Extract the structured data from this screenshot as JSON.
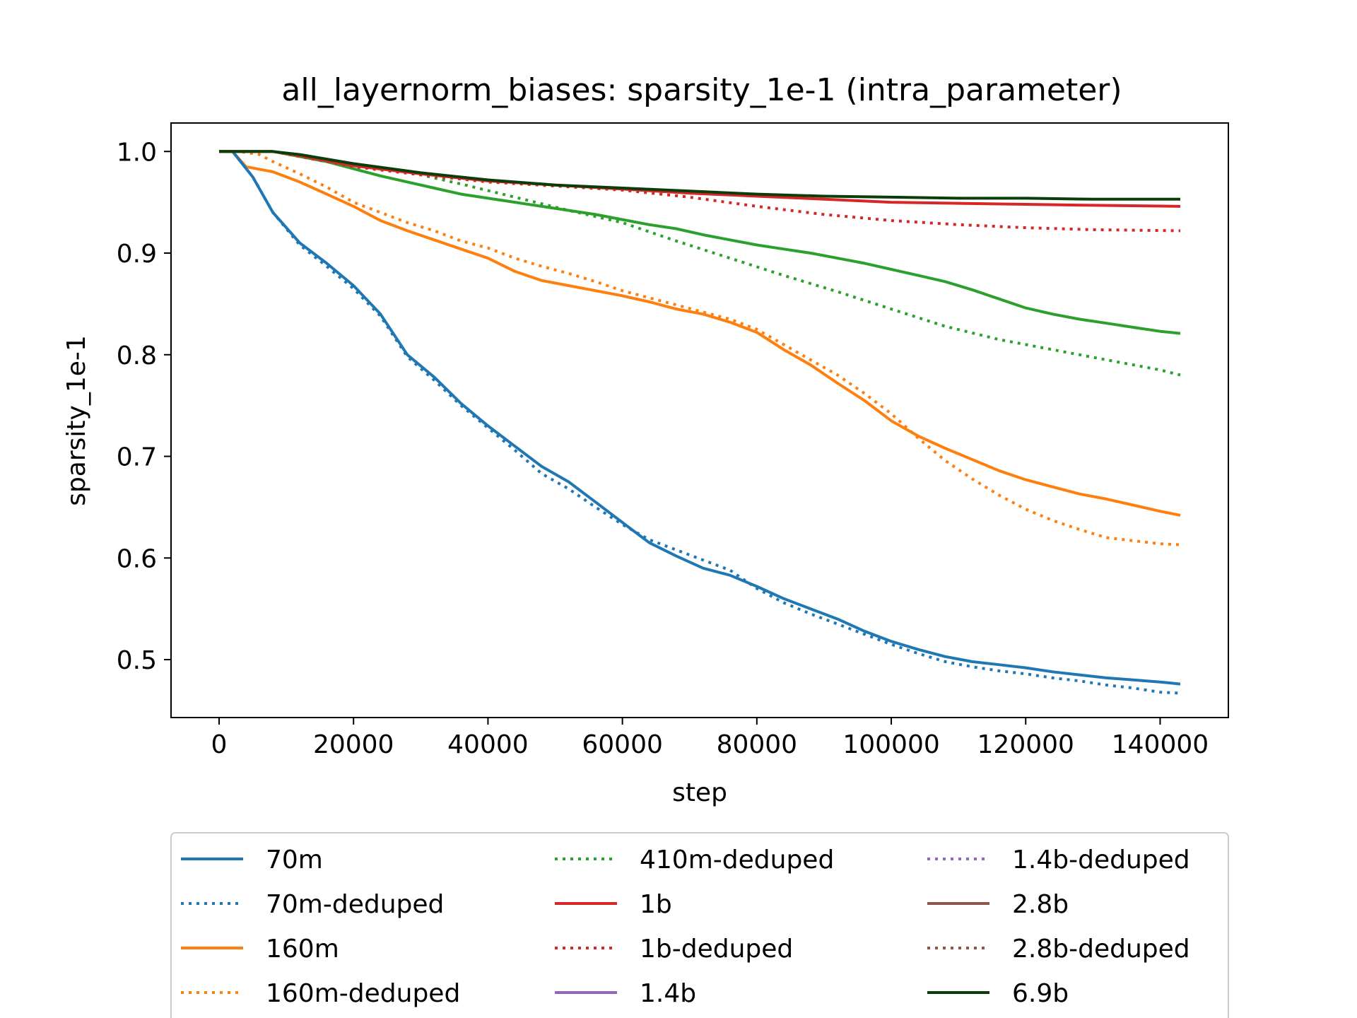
{
  "chart_data": {
    "type": "line",
    "title": "all_layernorm_biases: sparsity_1e-1 (intra_parameter)",
    "xlabel": "step",
    "ylabel": "sparsity_1e-1",
    "xlim": [
      -7150,
      150150
    ],
    "ylim": [
      0.443,
      1.028
    ],
    "xticks": [
      0,
      20000,
      40000,
      60000,
      80000,
      100000,
      120000,
      140000
    ],
    "yticks": [
      0.5,
      0.6,
      0.7,
      0.8,
      0.9,
      1.0
    ],
    "xtick_labels": [
      "0",
      "20000",
      "40000",
      "60000",
      "80000",
      "100000",
      "120000",
      "140000"
    ],
    "ytick_labels": [
      "0.5",
      "0.6",
      "0.7",
      "0.8",
      "0.9",
      "1.0"
    ],
    "grid": false,
    "legend_position": "bottom-center",
    "series": [
      {
        "name": "70m",
        "color": "#1f77b4",
        "dash": "solid",
        "x": [
          0,
          2000,
          5000,
          8000,
          12000,
          16000,
          20000,
          24000,
          28000,
          32000,
          36000,
          40000,
          44000,
          48000,
          52000,
          56000,
          60000,
          64000,
          68000,
          72000,
          76000,
          80000,
          84000,
          88000,
          92000,
          96000,
          100000,
          104000,
          108000,
          112000,
          116000,
          120000,
          124000,
          128000,
          132000,
          136000,
          140000,
          143000
        ],
        "y": [
          1.0,
          1.0,
          0.975,
          0.94,
          0.91,
          0.89,
          0.868,
          0.84,
          0.8,
          0.778,
          0.752,
          0.73,
          0.71,
          0.69,
          0.675,
          0.655,
          0.635,
          0.615,
          0.602,
          0.59,
          0.583,
          0.572,
          0.56,
          0.55,
          0.54,
          0.528,
          0.518,
          0.51,
          0.503,
          0.498,
          0.495,
          0.492,
          0.488,
          0.485,
          0.482,
          0.48,
          0.478,
          0.476
        ]
      },
      {
        "name": "70m-deduped",
        "color": "#1f77b4",
        "dash": "dotted",
        "x": [
          0,
          2000,
          5000,
          8000,
          12000,
          16000,
          20000,
          24000,
          28000,
          32000,
          36000,
          40000,
          44000,
          48000,
          52000,
          56000,
          60000,
          64000,
          68000,
          72000,
          76000,
          80000,
          84000,
          88000,
          92000,
          96000,
          100000,
          104000,
          108000,
          112000,
          116000,
          120000,
          124000,
          128000,
          132000,
          136000,
          140000,
          143000
        ],
        "y": [
          1.0,
          1.0,
          0.975,
          0.94,
          0.908,
          0.887,
          0.865,
          0.838,
          0.798,
          0.775,
          0.75,
          0.728,
          0.706,
          0.683,
          0.668,
          0.65,
          0.633,
          0.618,
          0.608,
          0.598,
          0.588,
          0.57,
          0.556,
          0.545,
          0.535,
          0.525,
          0.515,
          0.506,
          0.498,
          0.493,
          0.489,
          0.486,
          0.482,
          0.479,
          0.475,
          0.472,
          0.468,
          0.467
        ]
      },
      {
        "name": "160m",
        "color": "#ff7f0e",
        "dash": "solid",
        "x": [
          0,
          2000,
          4000,
          8000,
          12000,
          16000,
          20000,
          24000,
          28000,
          32000,
          36000,
          40000,
          44000,
          48000,
          52000,
          56000,
          60000,
          64000,
          68000,
          72000,
          76000,
          80000,
          84000,
          88000,
          92000,
          96000,
          100000,
          104000,
          108000,
          112000,
          116000,
          120000,
          124000,
          128000,
          132000,
          136000,
          140000,
          143000
        ],
        "y": [
          1.0,
          1.0,
          0.985,
          0.98,
          0.97,
          0.958,
          0.946,
          0.932,
          0.922,
          0.913,
          0.904,
          0.895,
          0.882,
          0.873,
          0.868,
          0.863,
          0.858,
          0.852,
          0.845,
          0.84,
          0.832,
          0.822,
          0.805,
          0.79,
          0.772,
          0.755,
          0.735,
          0.72,
          0.708,
          0.697,
          0.686,
          0.677,
          0.67,
          0.663,
          0.658,
          0.652,
          0.646,
          0.642
        ]
      },
      {
        "name": "160m-deduped",
        "color": "#ff7f0e",
        "dash": "dotted",
        "x": [
          0,
          3000,
          6000,
          8000,
          12000,
          16000,
          20000,
          24000,
          28000,
          32000,
          36000,
          40000,
          44000,
          48000,
          52000,
          56000,
          60000,
          64000,
          68000,
          72000,
          76000,
          80000,
          84000,
          88000,
          92000,
          96000,
          100000,
          104000,
          108000,
          112000,
          116000,
          120000,
          124000,
          128000,
          132000,
          136000,
          140000,
          143000
        ],
        "y": [
          1.0,
          1.0,
          0.997,
          0.99,
          0.978,
          0.965,
          0.95,
          0.94,
          0.93,
          0.922,
          0.912,
          0.905,
          0.895,
          0.887,
          0.88,
          0.872,
          0.863,
          0.856,
          0.849,
          0.842,
          0.835,
          0.825,
          0.81,
          0.795,
          0.78,
          0.762,
          0.742,
          0.718,
          0.696,
          0.678,
          0.662,
          0.648,
          0.637,
          0.628,
          0.62,
          0.617,
          0.614,
          0.613
        ]
      },
      {
        "name": "410m-deduped",
        "color": "#2ca02c",
        "dash": "dotted",
        "x": [
          0,
          4000,
          8000,
          12000,
          20000,
          28000,
          36000,
          44000,
          52000,
          60000,
          68000,
          76000,
          84000,
          92000,
          100000,
          108000,
          116000,
          124000,
          132000,
          140000,
          143000
        ],
        "y": [
          1.0,
          1.0,
          1.0,
          0.996,
          0.988,
          0.98,
          0.968,
          0.955,
          0.942,
          0.93,
          0.912,
          0.895,
          0.878,
          0.862,
          0.845,
          0.828,
          0.815,
          0.805,
          0.795,
          0.785,
          0.78
        ]
      },
      {
        "name": "1b",
        "color": "#d62728",
        "dash": "solid",
        "x": [
          0,
          4000,
          8000,
          12000,
          20000,
          30000,
          40000,
          50000,
          60000,
          70000,
          80000,
          90000,
          100000,
          110000,
          120000,
          130000,
          143000
        ],
        "y": [
          1.0,
          1.0,
          1.0,
          0.996,
          0.986,
          0.978,
          0.971,
          0.967,
          0.963,
          0.959,
          0.956,
          0.953,
          0.95,
          0.949,
          0.948,
          0.947,
          0.946
        ]
      },
      {
        "name": "1b-deduped",
        "color": "#d62728",
        "dash": "dotted",
        "x": [
          0,
          4000,
          8000,
          12000,
          20000,
          30000,
          40000,
          50000,
          60000,
          70000,
          80000,
          90000,
          100000,
          110000,
          120000,
          130000,
          143000
        ],
        "y": [
          1.0,
          1.0,
          1.0,
          0.995,
          0.985,
          0.977,
          0.97,
          0.966,
          0.962,
          0.955,
          0.946,
          0.938,
          0.932,
          0.928,
          0.925,
          0.923,
          0.922
        ]
      },
      {
        "name": "1.4b",
        "color": "#9467bd",
        "dash": "solid",
        "x": [],
        "y": []
      },
      {
        "name": "1.4b-deduped",
        "color": "#9467bd",
        "dash": "dotted",
        "x": [],
        "y": []
      },
      {
        "name": "2.8b",
        "color": "#8c564b",
        "dash": "solid",
        "x": [],
        "y": []
      },
      {
        "name": "2.8b-deduped",
        "color": "#8c564b",
        "dash": "dotted",
        "x": [],
        "y": []
      },
      {
        "name": "6.9b",
        "color": "#0b3d0b",
        "dash": "solid",
        "x": [
          0,
          4000,
          8000,
          12000,
          20000,
          30000,
          40000,
          50000,
          60000,
          70000,
          80000,
          90000,
          100000,
          110000,
          120000,
          130000,
          143000
        ],
        "y": [
          1.0,
          1.0,
          1.0,
          0.997,
          0.988,
          0.979,
          0.972,
          0.967,
          0.964,
          0.961,
          0.958,
          0.956,
          0.955,
          0.954,
          0.954,
          0.953,
          0.953
        ]
      },
      {
        "name": "410m",
        "color": "#2ca02c",
        "dash": "solid",
        "legend": false,
        "x": [
          0,
          4000,
          8000,
          12000,
          16000,
          20000,
          24000,
          28000,
          32000,
          36000,
          40000,
          44000,
          48000,
          52000,
          56000,
          60000,
          64000,
          68000,
          72000,
          76000,
          80000,
          84000,
          88000,
          92000,
          96000,
          100000,
          104000,
          108000,
          112000,
          116000,
          120000,
          124000,
          128000,
          132000,
          136000,
          140000,
          143000
        ],
        "y": [
          1.0,
          1.0,
          1.0,
          0.995,
          0.99,
          0.983,
          0.976,
          0.97,
          0.964,
          0.958,
          0.954,
          0.95,
          0.946,
          0.942,
          0.938,
          0.933,
          0.928,
          0.924,
          0.918,
          0.913,
          0.908,
          0.904,
          0.9,
          0.895,
          0.89,
          0.884,
          0.878,
          0.872,
          0.864,
          0.855,
          0.846,
          0.84,
          0.835,
          0.831,
          0.827,
          0.823,
          0.821
        ]
      }
    ]
  }
}
